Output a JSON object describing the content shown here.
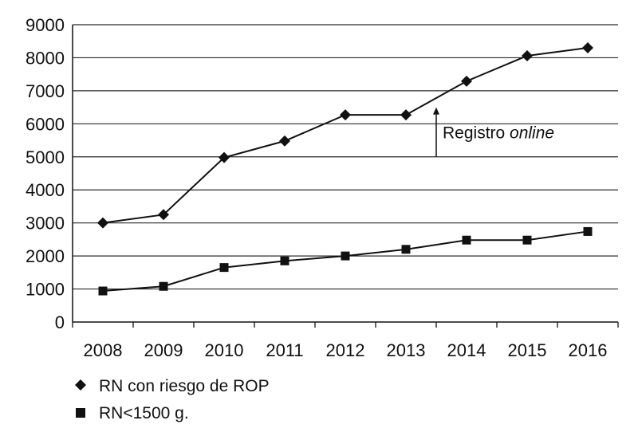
{
  "chart_data": {
    "type": "line",
    "title": "",
    "xlabel": "",
    "ylabel": "",
    "categories": [
      "2008",
      "2009",
      "2010",
      "2011",
      "2012",
      "2013",
      "2014",
      "2015",
      "2016"
    ],
    "ylim": [
      0,
      9000
    ],
    "yticks": [
      0,
      1000,
      2000,
      3000,
      4000,
      5000,
      6000,
      7000,
      8000,
      9000
    ],
    "grid": "horizontal",
    "legend_position": "bottom-left",
    "series": [
      {
        "name": "RN con riesgo de ROP",
        "marker": "diamond",
        "color": "#111111",
        "values": [
          3000,
          3250,
          4980,
          5480,
          6270,
          6270,
          7290,
          8060,
          8300
        ]
      },
      {
        "name": "RN<1500 g.",
        "marker": "square",
        "color": "#111111",
        "values": [
          940,
          1080,
          1650,
          1850,
          2000,
          2200,
          2480,
          2480,
          2740
        ]
      }
    ],
    "annotation": {
      "text_prefix": "Registro ",
      "text_italic": "online",
      "x_category": "2013",
      "x_offset": 0.5,
      "y_from": 5000,
      "y_to": 6500
    }
  }
}
